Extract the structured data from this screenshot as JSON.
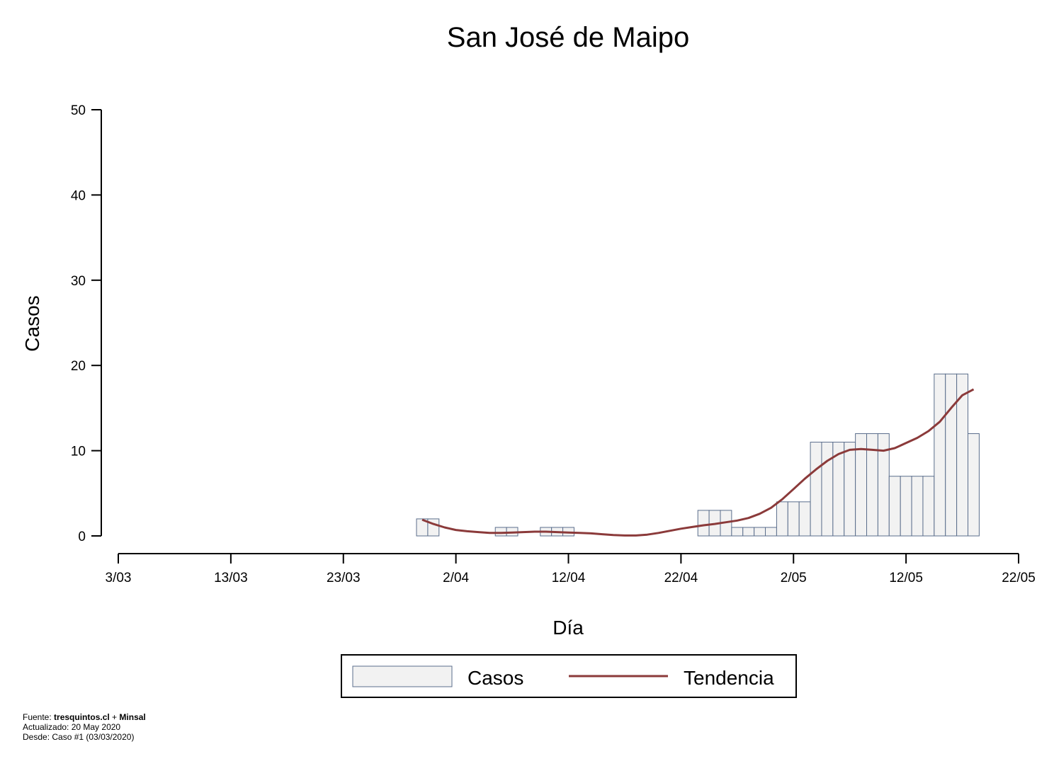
{
  "chart_data": {
    "type": "bar",
    "title": "San José de Maipo",
    "xlabel": "Día",
    "ylabel": "Casos",
    "ylim": [
      0,
      50
    ],
    "yticks": [
      0,
      10,
      20,
      30,
      40,
      50
    ],
    "xlim": [
      "2020-03-03",
      "2020-05-22"
    ],
    "xtick_labels": [
      "3/03",
      "13/03",
      "23/03",
      "2/04",
      "12/04",
      "22/04",
      "2/05",
      "12/05",
      "22/05"
    ],
    "bar_fill": "#f2f2f2",
    "bar_stroke": "#5b6e8c",
    "trend_color": "#8b3a3a",
    "series": [
      {
        "name": "Casos",
        "kind": "bar",
        "points": [
          {
            "x": "2020-03-30",
            "y": 2
          },
          {
            "x": "2020-03-31",
            "y": 2
          },
          {
            "x": "2020-04-06",
            "y": 1
          },
          {
            "x": "2020-04-07",
            "y": 1
          },
          {
            "x": "2020-04-10",
            "y": 1
          },
          {
            "x": "2020-04-11",
            "y": 1
          },
          {
            "x": "2020-04-12",
            "y": 1
          },
          {
            "x": "2020-04-24",
            "y": 3
          },
          {
            "x": "2020-04-25",
            "y": 3
          },
          {
            "x": "2020-04-26",
            "y": 3
          },
          {
            "x": "2020-04-27",
            "y": 1
          },
          {
            "x": "2020-04-28",
            "y": 1
          },
          {
            "x": "2020-04-29",
            "y": 1
          },
          {
            "x": "2020-04-30",
            "y": 1
          },
          {
            "x": "2020-05-01",
            "y": 4
          },
          {
            "x": "2020-05-02",
            "y": 4
          },
          {
            "x": "2020-05-03",
            "y": 4
          },
          {
            "x": "2020-05-04",
            "y": 11
          },
          {
            "x": "2020-05-05",
            "y": 11
          },
          {
            "x": "2020-05-06",
            "y": 11
          },
          {
            "x": "2020-05-07",
            "y": 11
          },
          {
            "x": "2020-05-08",
            "y": 12
          },
          {
            "x": "2020-05-09",
            "y": 12
          },
          {
            "x": "2020-05-10",
            "y": 12
          },
          {
            "x": "2020-05-11",
            "y": 7
          },
          {
            "x": "2020-05-12",
            "y": 7
          },
          {
            "x": "2020-05-13",
            "y": 7
          },
          {
            "x": "2020-05-14",
            "y": 7
          },
          {
            "x": "2020-05-15",
            "y": 19
          },
          {
            "x": "2020-05-16",
            "y": 19
          },
          {
            "x": "2020-05-17",
            "y": 19
          },
          {
            "x": "2020-05-18",
            "y": 12
          }
        ]
      },
      {
        "name": "Tendencia",
        "kind": "line",
        "points": [
          {
            "x": "2020-03-30",
            "y": 1.9
          },
          {
            "x": "2020-03-31",
            "y": 1.4
          },
          {
            "x": "2020-04-01",
            "y": 1.0
          },
          {
            "x": "2020-04-02",
            "y": 0.7
          },
          {
            "x": "2020-04-03",
            "y": 0.55
          },
          {
            "x": "2020-04-04",
            "y": 0.45
          },
          {
            "x": "2020-04-05",
            "y": 0.35
          },
          {
            "x": "2020-04-06",
            "y": 0.35
          },
          {
            "x": "2020-04-07",
            "y": 0.4
          },
          {
            "x": "2020-04-08",
            "y": 0.45
          },
          {
            "x": "2020-04-09",
            "y": 0.5
          },
          {
            "x": "2020-04-10",
            "y": 0.5
          },
          {
            "x": "2020-04-11",
            "y": 0.45
          },
          {
            "x": "2020-04-12",
            "y": 0.4
          },
          {
            "x": "2020-04-13",
            "y": 0.35
          },
          {
            "x": "2020-04-14",
            "y": 0.3
          },
          {
            "x": "2020-04-15",
            "y": 0.2
          },
          {
            "x": "2020-04-16",
            "y": 0.1
          },
          {
            "x": "2020-04-17",
            "y": 0.05
          },
          {
            "x": "2020-04-18",
            "y": 0.05
          },
          {
            "x": "2020-04-19",
            "y": 0.15
          },
          {
            "x": "2020-04-20",
            "y": 0.35
          },
          {
            "x": "2020-04-21",
            "y": 0.6
          },
          {
            "x": "2020-04-22",
            "y": 0.85
          },
          {
            "x": "2020-04-23",
            "y": 1.05
          },
          {
            "x": "2020-04-24",
            "y": 1.25
          },
          {
            "x": "2020-04-25",
            "y": 1.4
          },
          {
            "x": "2020-04-26",
            "y": 1.6
          },
          {
            "x": "2020-04-27",
            "y": 1.8
          },
          {
            "x": "2020-04-28",
            "y": 2.1
          },
          {
            "x": "2020-04-29",
            "y": 2.6
          },
          {
            "x": "2020-04-30",
            "y": 3.3
          },
          {
            "x": "2020-05-01",
            "y": 4.3
          },
          {
            "x": "2020-05-02",
            "y": 5.5
          },
          {
            "x": "2020-05-03",
            "y": 6.7
          },
          {
            "x": "2020-05-04",
            "y": 7.8
          },
          {
            "x": "2020-05-05",
            "y": 8.8
          },
          {
            "x": "2020-05-06",
            "y": 9.6
          },
          {
            "x": "2020-05-07",
            "y": 10.1
          },
          {
            "x": "2020-05-08",
            "y": 10.2
          },
          {
            "x": "2020-05-09",
            "y": 10.1
          },
          {
            "x": "2020-05-10",
            "y": 10.0
          },
          {
            "x": "2020-05-11",
            "y": 10.3
          },
          {
            "x": "2020-05-12",
            "y": 10.9
          },
          {
            "x": "2020-05-13",
            "y": 11.5
          },
          {
            "x": "2020-05-14",
            "y": 12.3
          },
          {
            "x": "2020-05-15",
            "y": 13.4
          },
          {
            "x": "2020-05-16",
            "y": 15.0
          },
          {
            "x": "2020-05-17",
            "y": 16.5
          },
          {
            "x": "2020-05-18",
            "y": 17.2
          }
        ]
      }
    ]
  },
  "footer": {
    "fuente_prefix": "Fuente: ",
    "fuente_site": "tresquintos.cl",
    "fuente_plus": " + ",
    "fuente_org": "Minsal",
    "actualizado": "Actualizado: 20 May 2020",
    "desde": "Desde: Caso #1  (03/03/2020)"
  }
}
